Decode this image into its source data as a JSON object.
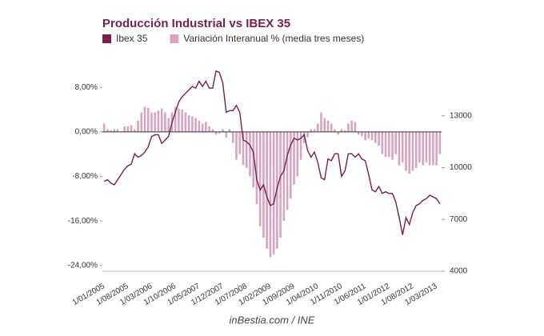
{
  "chart_data": {
    "type": "combo",
    "title": "Producción Industrial vs IBEX 35",
    "source": "inBestia.com / INE",
    "categories": [
      "1/01/2005",
      null,
      null,
      null,
      null,
      null,
      null,
      "1/08/2005",
      null,
      null,
      null,
      null,
      null,
      null,
      "1/03/2006",
      null,
      null,
      null,
      null,
      null,
      null,
      "1/10/2006",
      null,
      null,
      null,
      null,
      null,
      null,
      "1/05/2007",
      null,
      null,
      null,
      null,
      null,
      null,
      "1/12/2007",
      null,
      null,
      null,
      null,
      null,
      null,
      "1/07/2008",
      null,
      null,
      null,
      null,
      null,
      null,
      "1/02/2009",
      null,
      null,
      null,
      null,
      null,
      null,
      "1/09/2009",
      null,
      null,
      null,
      null,
      null,
      null,
      "1/04/2010",
      null,
      null,
      null,
      null,
      null,
      null,
      "1/11/2010",
      null,
      null,
      null,
      null,
      null,
      null,
      "1/06/2011",
      null,
      null,
      null,
      null,
      null,
      null,
      "1/01/2012",
      null,
      null,
      null,
      null,
      null,
      null,
      "1/08/2012",
      null,
      null,
      null,
      null,
      null,
      null,
      "1/03/2013",
      null
    ],
    "series": [
      {
        "name": "Ibex 35",
        "type": "line",
        "axis": "y2",
        "color": "#7b1d4e",
        "values": [
          9200,
          9300,
          9100,
          9000,
          9300,
          9600,
          9900,
          10100,
          10200,
          10800,
          10600,
          10700,
          10900,
          11200,
          11800,
          11900,
          11900,
          11400,
          11600,
          11800,
          12600,
          13200,
          13800,
          14100,
          14300,
          14500,
          14700,
          14600,
          15000,
          14700,
          15000,
          14600,
          14600,
          15600,
          15500,
          14900,
          13200,
          13300,
          13300,
          13600,
          13200,
          11600,
          11500,
          11300,
          10900,
          9300,
          8700,
          9000,
          8300,
          7800,
          7900,
          8800,
          9500,
          9800,
          10700,
          11300,
          11700,
          11600,
          11700,
          11900,
          11000,
          10600,
          10900,
          10300,
          9400,
          9300,
          10500,
          10400,
          10800,
          10800,
          9500,
          9800,
          10800,
          10800,
          10600,
          10800,
          10500,
          10400,
          9600,
          8700,
          8600,
          8900,
          8500,
          8600,
          8500,
          8500,
          8000,
          7100,
          6100,
          7100,
          6700,
          7400,
          7800,
          7900,
          8100,
          8200,
          8400,
          8300,
          8200,
          7900
        ]
      },
      {
        "name": "Variación Interanual % (media tres meses)",
        "type": "bar",
        "color": "#d9a3c0",
        "values": [
          1.5,
          0.5,
          0.3,
          0.5,
          0.5,
          0,
          1,
          1,
          1.2,
          0.5,
          2,
          3.5,
          4.5,
          4.3,
          3.5,
          3.5,
          3.8,
          4.2,
          3.5,
          2.5,
          3.5,
          4.5,
          4.2,
          4,
          3.5,
          3,
          2.8,
          2.5,
          2,
          1.5,
          1.8,
          1,
          0.5,
          -0.5,
          -0.3,
          0.5,
          -1,
          0.5,
          -2,
          -5,
          -4,
          -6,
          -6.5,
          -8,
          -10,
          -13,
          -17,
          -19,
          -21,
          -22.5,
          -22,
          -21,
          -19,
          -16,
          -14,
          -12,
          -9.5,
          -8,
          -5,
          -2,
          -1,
          0.5,
          0.5,
          1.5,
          3.5,
          2.5,
          2,
          1.5,
          0.5,
          -0.5,
          0.5,
          0.3,
          1.5,
          2,
          1.8,
          -0.5,
          -0.8,
          -1.5,
          -1.2,
          -1.5,
          -2,
          -2.5,
          -4,
          -4.5,
          -4.5,
          -5,
          -4,
          -6,
          -5.5,
          -7,
          -7.5,
          -7,
          -6.5,
          -5.5,
          -6,
          -5.5,
          -6,
          -6,
          -6,
          -4
        ]
      }
    ],
    "ylim": [
      -25.9,
      12.2
    ],
    "yticks": [
      {
        "value": 8,
        "label": "8,00%"
      },
      {
        "value": 0,
        "label": "0,00%"
      },
      {
        "value": -8,
        "label": "-8,00%"
      },
      {
        "value": -16,
        "label": "-16,00%"
      },
      {
        "value": -24,
        "label": "-24,00%"
      }
    ],
    "y2lim": [
      3720,
      16000
    ],
    "y2ticks": [
      4000,
      7000,
      10000,
      13000
    ]
  }
}
